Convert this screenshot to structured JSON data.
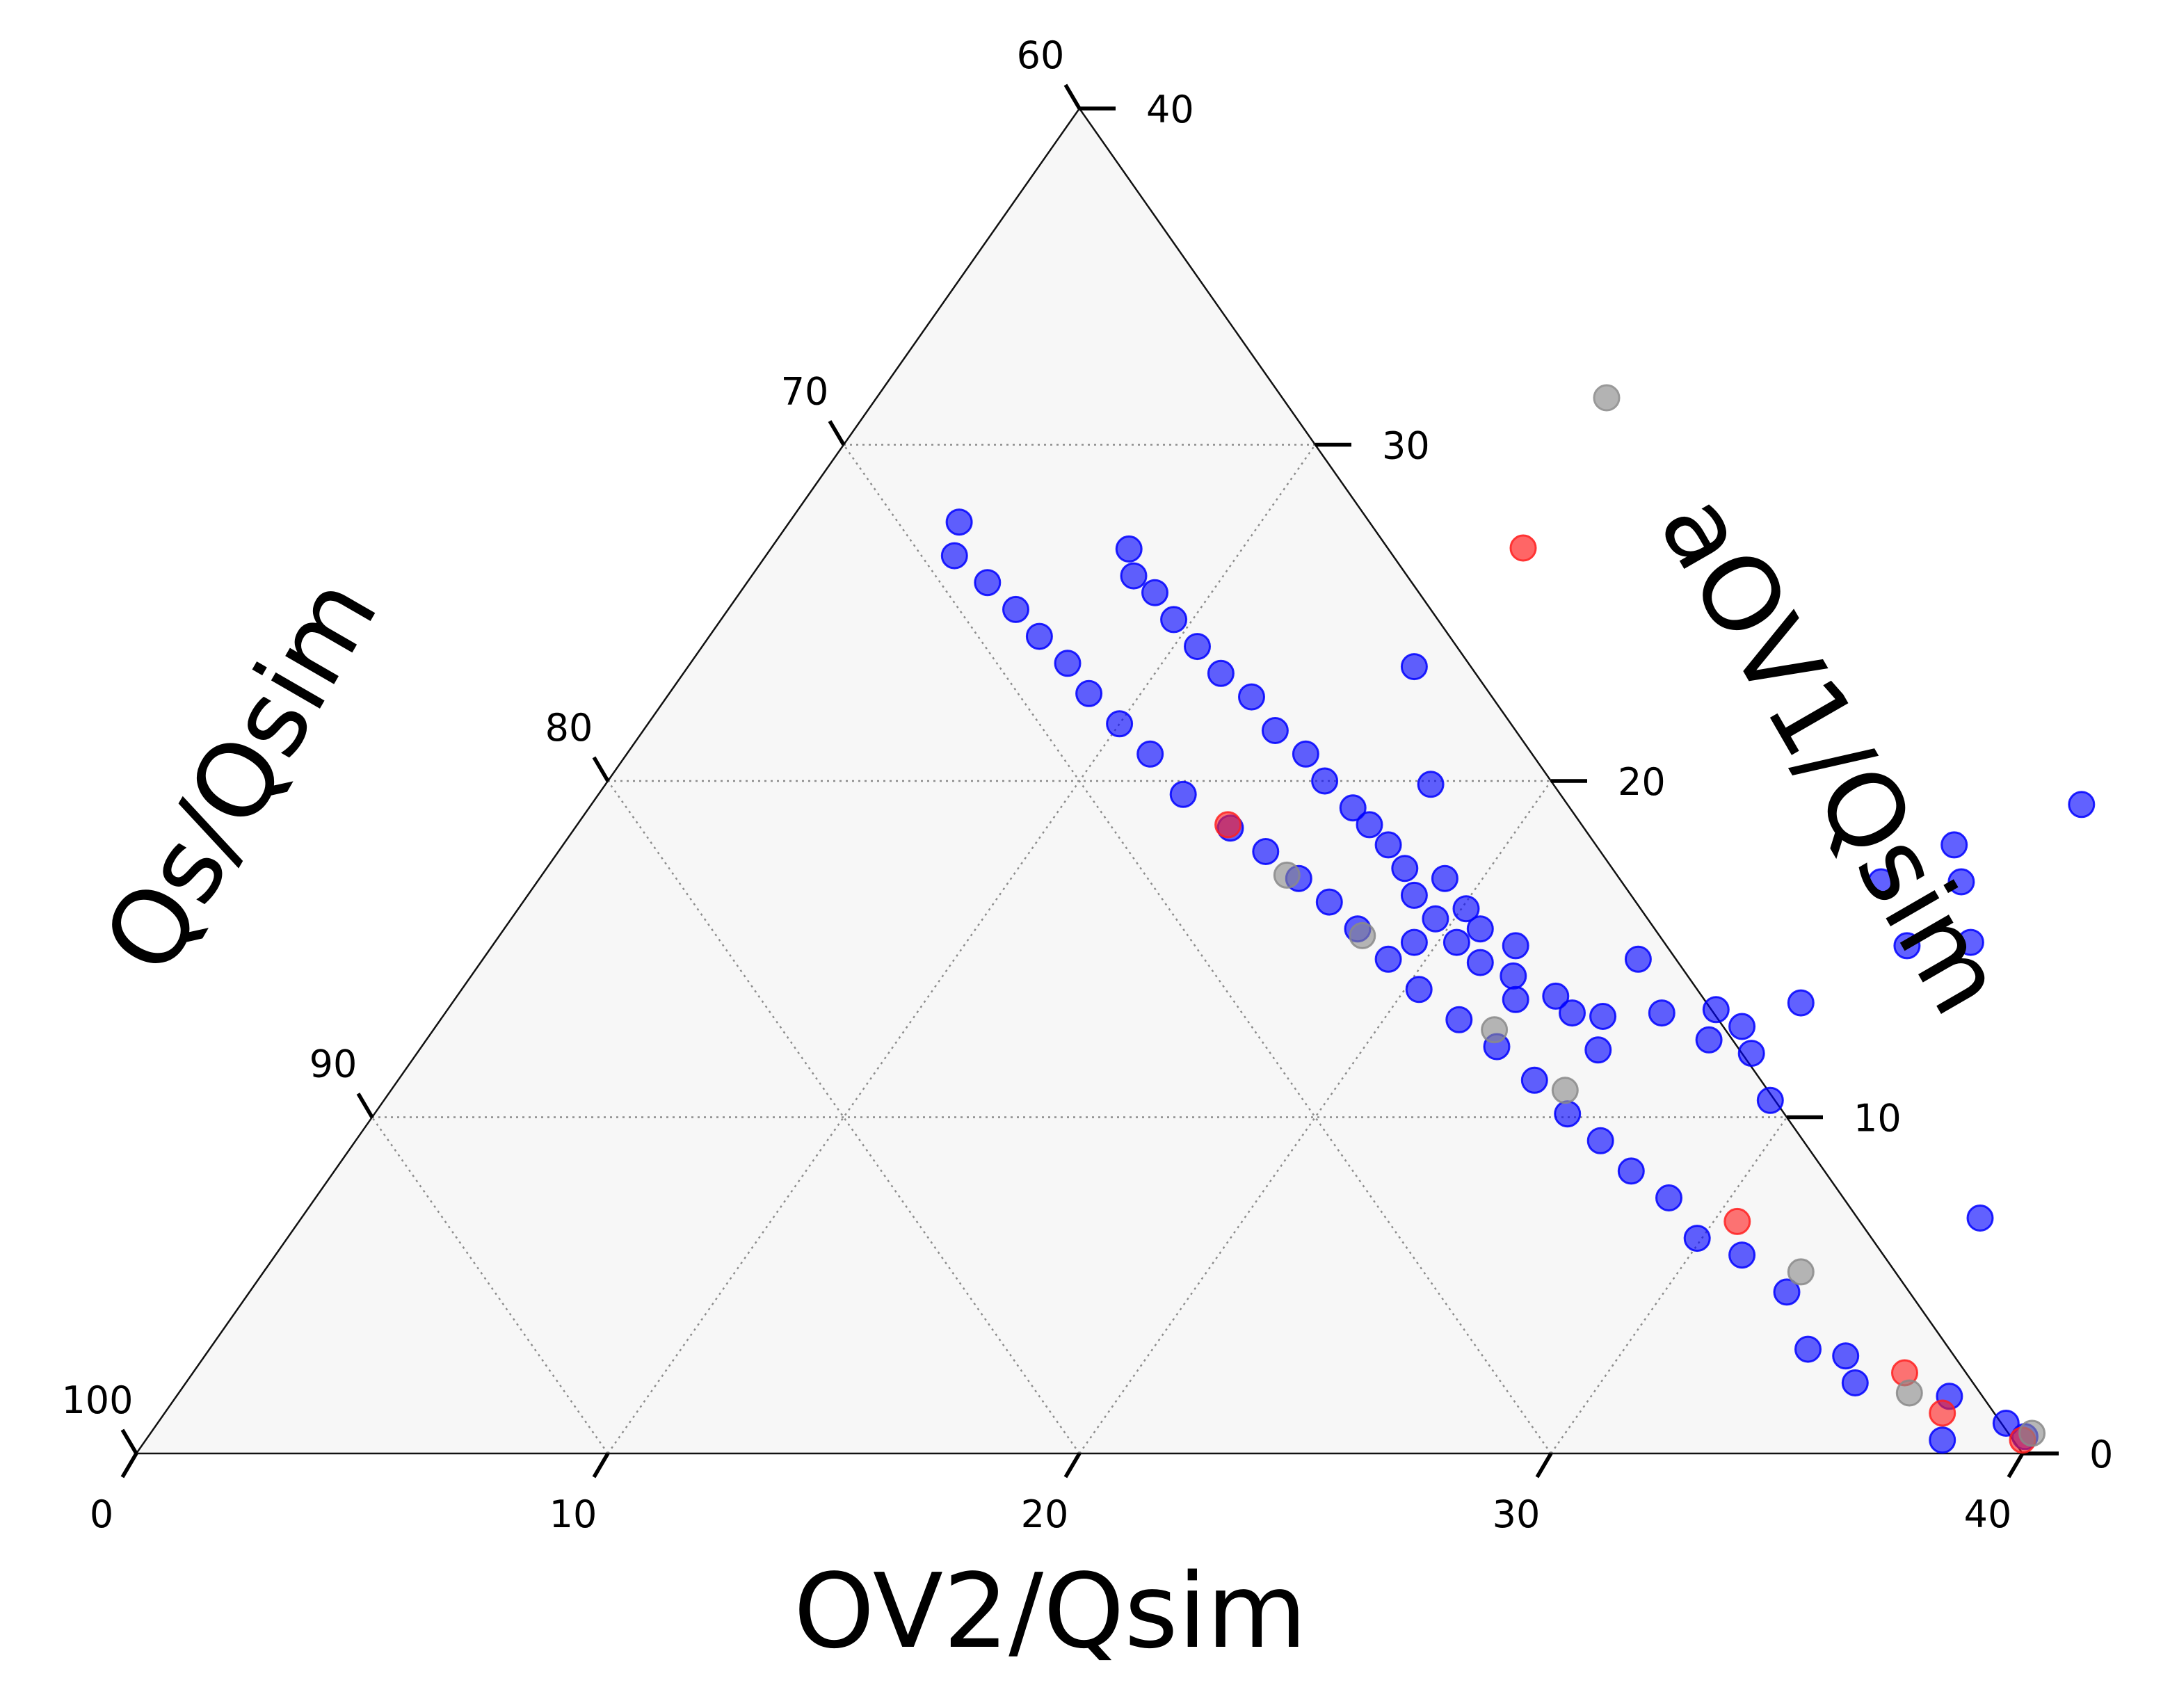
{
  "chart_data": {
    "type": "scatter",
    "subtype": "ternary",
    "axes": {
      "bottom": {
        "label": "OV2/Qsim",
        "ticks": [
          "0",
          "10",
          "20",
          "30",
          "40"
        ],
        "range": [
          0,
          40
        ]
      },
      "left": {
        "label": "Qs/Qsim",
        "ticks": [
          "60",
          "70",
          "80",
          "90",
          "100"
        ],
        "range": [
          60,
          100
        ]
      },
      "right": {
        "label": "aOV1/Qsim",
        "ticks": [
          "0",
          "10",
          "20",
          "30",
          "40"
        ],
        "range": [
          0,
          40
        ]
      }
    },
    "grid": true,
    "legend": "right (unlabeled markers)",
    "legend_markers": [
      {
        "color": "#999999"
      },
      {
        "color": "#ff3333"
      }
    ],
    "colors": {
      "blue": "#0000ff",
      "red": "#ff2020",
      "gray": "#8a8a8a"
    },
    "series": [
      {
        "color": "blue",
        "points": [
          [
            39.2,
            0.9
          ],
          [
            39.8,
            0.5
          ],
          [
            38.1,
            0.4
          ],
          [
            37.6,
            1.7
          ],
          [
            35.4,
            2.1
          ],
          [
            34.8,
            2.9
          ],
          [
            33.9,
            3.1
          ],
          [
            32.6,
            4.8
          ],
          [
            31.1,
            5.9
          ],
          [
            29.9,
            6.4
          ],
          [
            28.7,
            7.6
          ],
          [
            27.5,
            8.4
          ],
          [
            26.4,
            9.3
          ],
          [
            25.3,
            10.1
          ],
          [
            24.1,
            11.1
          ],
          [
            22.8,
            12.1
          ],
          [
            21.6,
            12.9
          ],
          [
            20.3,
            13.8
          ],
          [
            19.2,
            14.7
          ],
          [
            18.1,
            15.6
          ],
          [
            17.1,
            16.4
          ],
          [
            16.1,
            17.1
          ],
          [
            15.0,
            17.9
          ],
          [
            13.9,
            18.6
          ],
          [
            12.4,
            19.6
          ],
          [
            11.1,
            20.8
          ],
          [
            10.0,
            21.7
          ],
          [
            8.9,
            22.6
          ],
          [
            8.0,
            23.5
          ],
          [
            7.0,
            24.3
          ],
          [
            6.1,
            25.1
          ],
          [
            5.1,
            25.9
          ],
          [
            4.0,
            26.7
          ],
          [
            3.6,
            27.7
          ],
          [
            35.6,
            7.0
          ],
          [
            30.0,
            15.1
          ],
          [
            31.3,
            15.2
          ],
          [
            28.5,
            17.0
          ],
          [
            30.2,
            17.0
          ],
          [
            29.5,
            18.1
          ],
          [
            31.6,
            19.3
          ],
          [
            29.4,
            10.5
          ],
          [
            27.2,
            12.3
          ],
          [
            28.3,
            11.9
          ],
          [
            27.7,
            12.7
          ],
          [
            26.9,
            13.2
          ],
          [
            28.6,
            13.4
          ],
          [
            25.8,
            13.1
          ],
          [
            24.6,
            13.0
          ],
          [
            23.3,
            13.6
          ],
          [
            24.5,
            14.7
          ],
          [
            22.1,
            14.2
          ],
          [
            21.7,
            15.1
          ],
          [
            20.7,
            15.6
          ],
          [
            19.5,
            15.2
          ],
          [
            20.1,
            16.2
          ],
          [
            18.8,
            16.6
          ],
          [
            18.2,
            17.4
          ],
          [
            17.5,
            18.1
          ],
          [
            16.8,
            18.7
          ],
          [
            16.2,
            19.2
          ],
          [
            15.2,
            20.0
          ],
          [
            14.4,
            20.8
          ],
          [
            13.4,
            21.5
          ],
          [
            12.4,
            22.5
          ],
          [
            11.4,
            23.2
          ],
          [
            10.5,
            24.0
          ],
          [
            9.6,
            24.8
          ],
          [
            8.8,
            25.6
          ],
          [
            8.1,
            26.1
          ],
          [
            7.6,
            26.9
          ],
          [
            15.4,
            23.4
          ],
          [
            17.5,
            19.9
          ],
          [
            19.2,
            17.1
          ],
          [
            25.0,
            12.0
          ],
          [
            23.9,
            13.1
          ],
          [
            22.5,
            13.5
          ],
          [
            21.2,
            14.6
          ],
          [
            20.4,
            15.2
          ],
          [
            19.6,
            15.9
          ]
        ]
      },
      {
        "color": "red",
        "points": [
          [
            39.8,
            0.4
          ],
          [
            37.7,
            1.2
          ],
          [
            36.3,
            2.4
          ],
          [
            30.5,
            6.9
          ],
          [
            13.8,
            18.7
          ]
        ]
      },
      {
        "color": "gray",
        "points": [
          [
            39.9,
            0.6
          ],
          [
            36.7,
            1.8
          ],
          [
            32.6,
            5.4
          ],
          [
            24.9,
            10.8
          ],
          [
            22.5,
            12.6
          ],
          [
            18.3,
            15.4
          ],
          [
            15.8,
            17.2
          ]
        ]
      }
    ]
  }
}
